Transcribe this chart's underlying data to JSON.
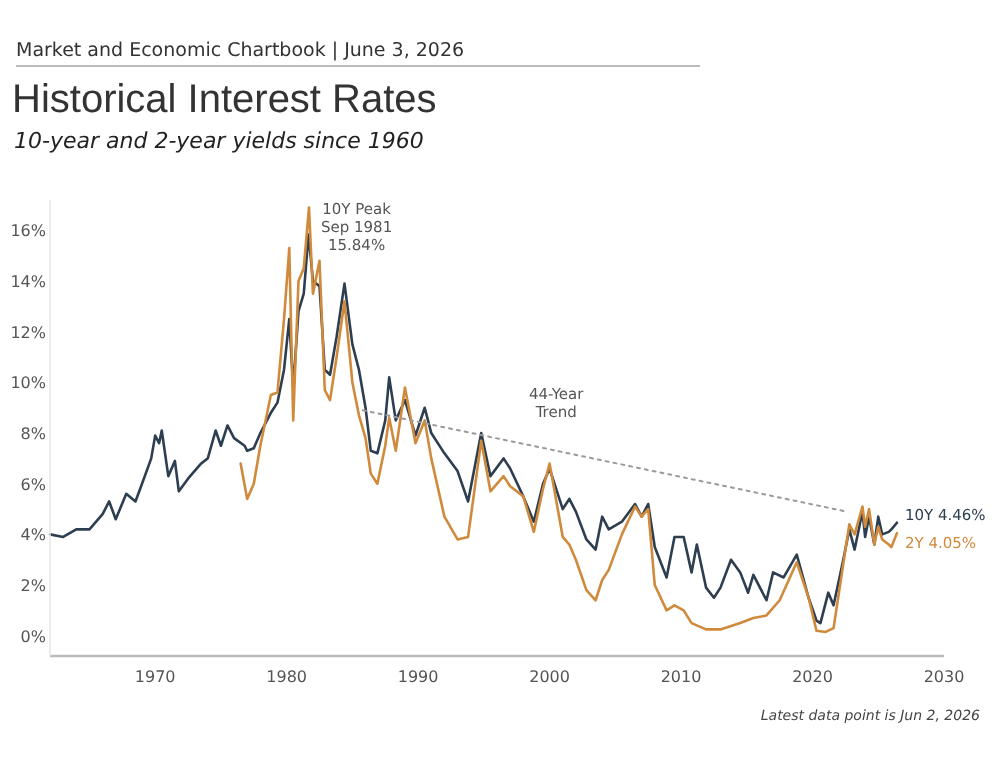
{
  "chart_data": {
    "type": "line",
    "title": "Historical Interest Rates",
    "subtitle": "10-year and 2-year yields since 1960",
    "annotations": [
      "Market and Economic Chartbook | June 3, 2026",
      {
        "text": "10Y Peak\nSep 1981\n15.84%",
        "x": 1981.67,
        "y": 15.84
      },
      {
        "text": "44-Year\nTrend",
        "x": 2000.5,
        "y": 7.6
      },
      "Latest data point is Jun 2, 2026"
    ],
    "xlim": [
      1962,
      2030
    ],
    "xticks": [
      1970,
      1980,
      1990,
      2000,
      2010,
      2020,
      2030
    ],
    "ylim": [
      -0.8,
      17.2
    ],
    "yticks": [
      {
        "value": 0,
        "label": "0%"
      },
      {
        "value": 2,
        "label": "2%"
      },
      {
        "value": 4,
        "label": "4%"
      },
      {
        "value": 6,
        "label": "6%"
      },
      {
        "value": 8,
        "label": "8%"
      },
      {
        "value": 10,
        "label": "10%"
      },
      {
        "value": 12,
        "label": "12%"
      },
      {
        "value": 14,
        "label": "14%"
      },
      {
        "value": 16,
        "label": "16%"
      }
    ],
    "grid": false,
    "series": [
      {
        "name": "10Y 4.46%",
        "color": "#2d3e50",
        "x": [
          1962,
          1963,
          1964,
          1965,
          1966,
          1966.5,
          1967,
          1967.8,
          1968.5,
          1969,
          1969.7,
          1970,
          1970.3,
          1970.5,
          1971,
          1971.5,
          1971.8,
          1972.5,
          1973.5,
          1974,
          1974.6,
          1975,
          1975.5,
          1976,
          1976.8,
          1977,
          1977.5,
          1978,
          1978.8,
          1979.3,
          1979.8,
          1980.2,
          1980.5,
          1980.9,
          1981.3,
          1981.67,
          1982,
          1982.5,
          1982.9,
          1983.3,
          1983.8,
          1984.4,
          1985,
          1985.5,
          1986,
          1986.4,
          1986.9,
          1987.5,
          1987.8,
          1988.3,
          1989,
          1989.8,
          1990.5,
          1991,
          1992,
          1993,
          1993.8,
          1994.8,
          1995.5,
          1996.5,
          1997,
          1998,
          1998.8,
          1999.5,
          2000,
          2001,
          2001.5,
          2002,
          2002.8,
          2003.5,
          2004,
          2004.5,
          2005.5,
          2006.5,
          2007,
          2007.5,
          2008,
          2008.9,
          2009.5,
          2010.2,
          2010.8,
          2011.2,
          2011.9,
          2012.5,
          2013,
          2013.8,
          2014.5,
          2015.1,
          2015.5,
          2016.5,
          2017,
          2017.8,
          2018.8,
          2019.7,
          2020.3,
          2020.6,
          2021.2,
          2021.6,
          2022.3,
          2022.8,
          2023.2,
          2023.8,
          2024,
          2024.3,
          2024.7,
          2025,
          2025.3,
          2025.8,
          2026,
          2026.42
        ],
        "values": [
          4.0,
          3.9,
          4.2,
          4.2,
          4.8,
          5.3,
          4.6,
          5.6,
          5.3,
          6.0,
          7.0,
          7.9,
          7.6,
          8.1,
          6.3,
          6.9,
          5.7,
          6.2,
          6.8,
          7.0,
          8.1,
          7.5,
          8.3,
          7.8,
          7.5,
          7.3,
          7.4,
          8.0,
          8.8,
          9.2,
          10.5,
          12.5,
          9.8,
          12.8,
          13.5,
          15.84,
          14.0,
          13.8,
          10.5,
          10.3,
          11.8,
          13.9,
          11.5,
          10.5,
          9.0,
          7.3,
          7.2,
          8.5,
          10.2,
          8.5,
          9.3,
          7.9,
          9.0,
          8.0,
          7.2,
          6.5,
          5.3,
          8.0,
          6.3,
          7.0,
          6.6,
          5.5,
          4.5,
          6.0,
          6.6,
          5.0,
          5.4,
          4.9,
          3.8,
          3.4,
          4.7,
          4.2,
          4.5,
          5.2,
          4.7,
          5.2,
          3.5,
          2.3,
          3.9,
          3.9,
          2.5,
          3.6,
          1.9,
          1.5,
          1.9,
          3.0,
          2.5,
          1.7,
          2.4,
          1.4,
          2.5,
          2.3,
          3.2,
          1.5,
          0.6,
          0.5,
          1.7,
          1.2,
          2.9,
          4.2,
          3.4,
          4.9,
          3.9,
          4.7,
          3.6,
          4.7,
          4.0,
          4.1,
          4.2,
          4.46
        ]
      },
      {
        "name": "2Y 4.05%",
        "color": "#d08a3c",
        "x": [
          1976.5,
          1977,
          1977.5,
          1978,
          1978.8,
          1979.3,
          1979.8,
          1980.2,
          1980.5,
          1980.9,
          1981.3,
          1981.7,
          1982,
          1982.5,
          1982.9,
          1983.3,
          1983.8,
          1984.4,
          1985,
          1985.5,
          1986,
          1986.4,
          1986.9,
          1987.5,
          1987.8,
          1988.3,
          1989,
          1989.8,
          1990.5,
          1991,
          1992,
          1993,
          1993.8,
          1994.8,
          1995.5,
          1996.5,
          1997,
          1998,
          1998.8,
          1999.5,
          2000,
          2001,
          2001.5,
          2002,
          2002.8,
          2003.5,
          2004,
          2004.5,
          2005.5,
          2006.5,
          2007,
          2007.5,
          2008,
          2008.9,
          2009.5,
          2010.2,
          2010.8,
          2011.9,
          2013,
          2014.5,
          2015.5,
          2016.5,
          2017.5,
          2018.8,
          2019.7,
          2020.3,
          2021,
          2021.6,
          2022.3,
          2022.8,
          2023.2,
          2023.8,
          2024,
          2024.3,
          2024.7,
          2025,
          2025.3,
          2025.8,
          2026,
          2026.42
        ],
        "values": [
          6.8,
          5.4,
          6.0,
          7.5,
          9.5,
          9.6,
          12.5,
          15.3,
          8.5,
          14.0,
          14.5,
          16.9,
          13.5,
          14.8,
          9.7,
          9.3,
          11.0,
          13.2,
          10.0,
          8.7,
          7.8,
          6.4,
          6.0,
          7.5,
          8.6,
          7.3,
          9.8,
          7.6,
          8.5,
          7.0,
          4.7,
          3.8,
          3.9,
          7.7,
          5.7,
          6.3,
          5.9,
          5.5,
          4.1,
          5.8,
          6.8,
          3.9,
          3.6,
          3.0,
          1.8,
          1.4,
          2.2,
          2.6,
          4.0,
          5.1,
          4.7,
          5.0,
          2.0,
          1.0,
          1.2,
          1.0,
          0.5,
          0.25,
          0.25,
          0.5,
          0.7,
          0.8,
          1.4,
          2.9,
          1.5,
          0.2,
          0.15,
          0.3,
          2.7,
          4.4,
          4.0,
          5.1,
          4.3,
          5.0,
          3.6,
          4.3,
          3.8,
          3.6,
          3.5,
          4.05
        ]
      },
      {
        "color": "#9a9a9a",
        "line_style": "dotted",
        "x": [
          1985.8,
          2022.6
        ],
        "values": [
          8.9,
          4.9
        ]
      }
    ]
  }
}
